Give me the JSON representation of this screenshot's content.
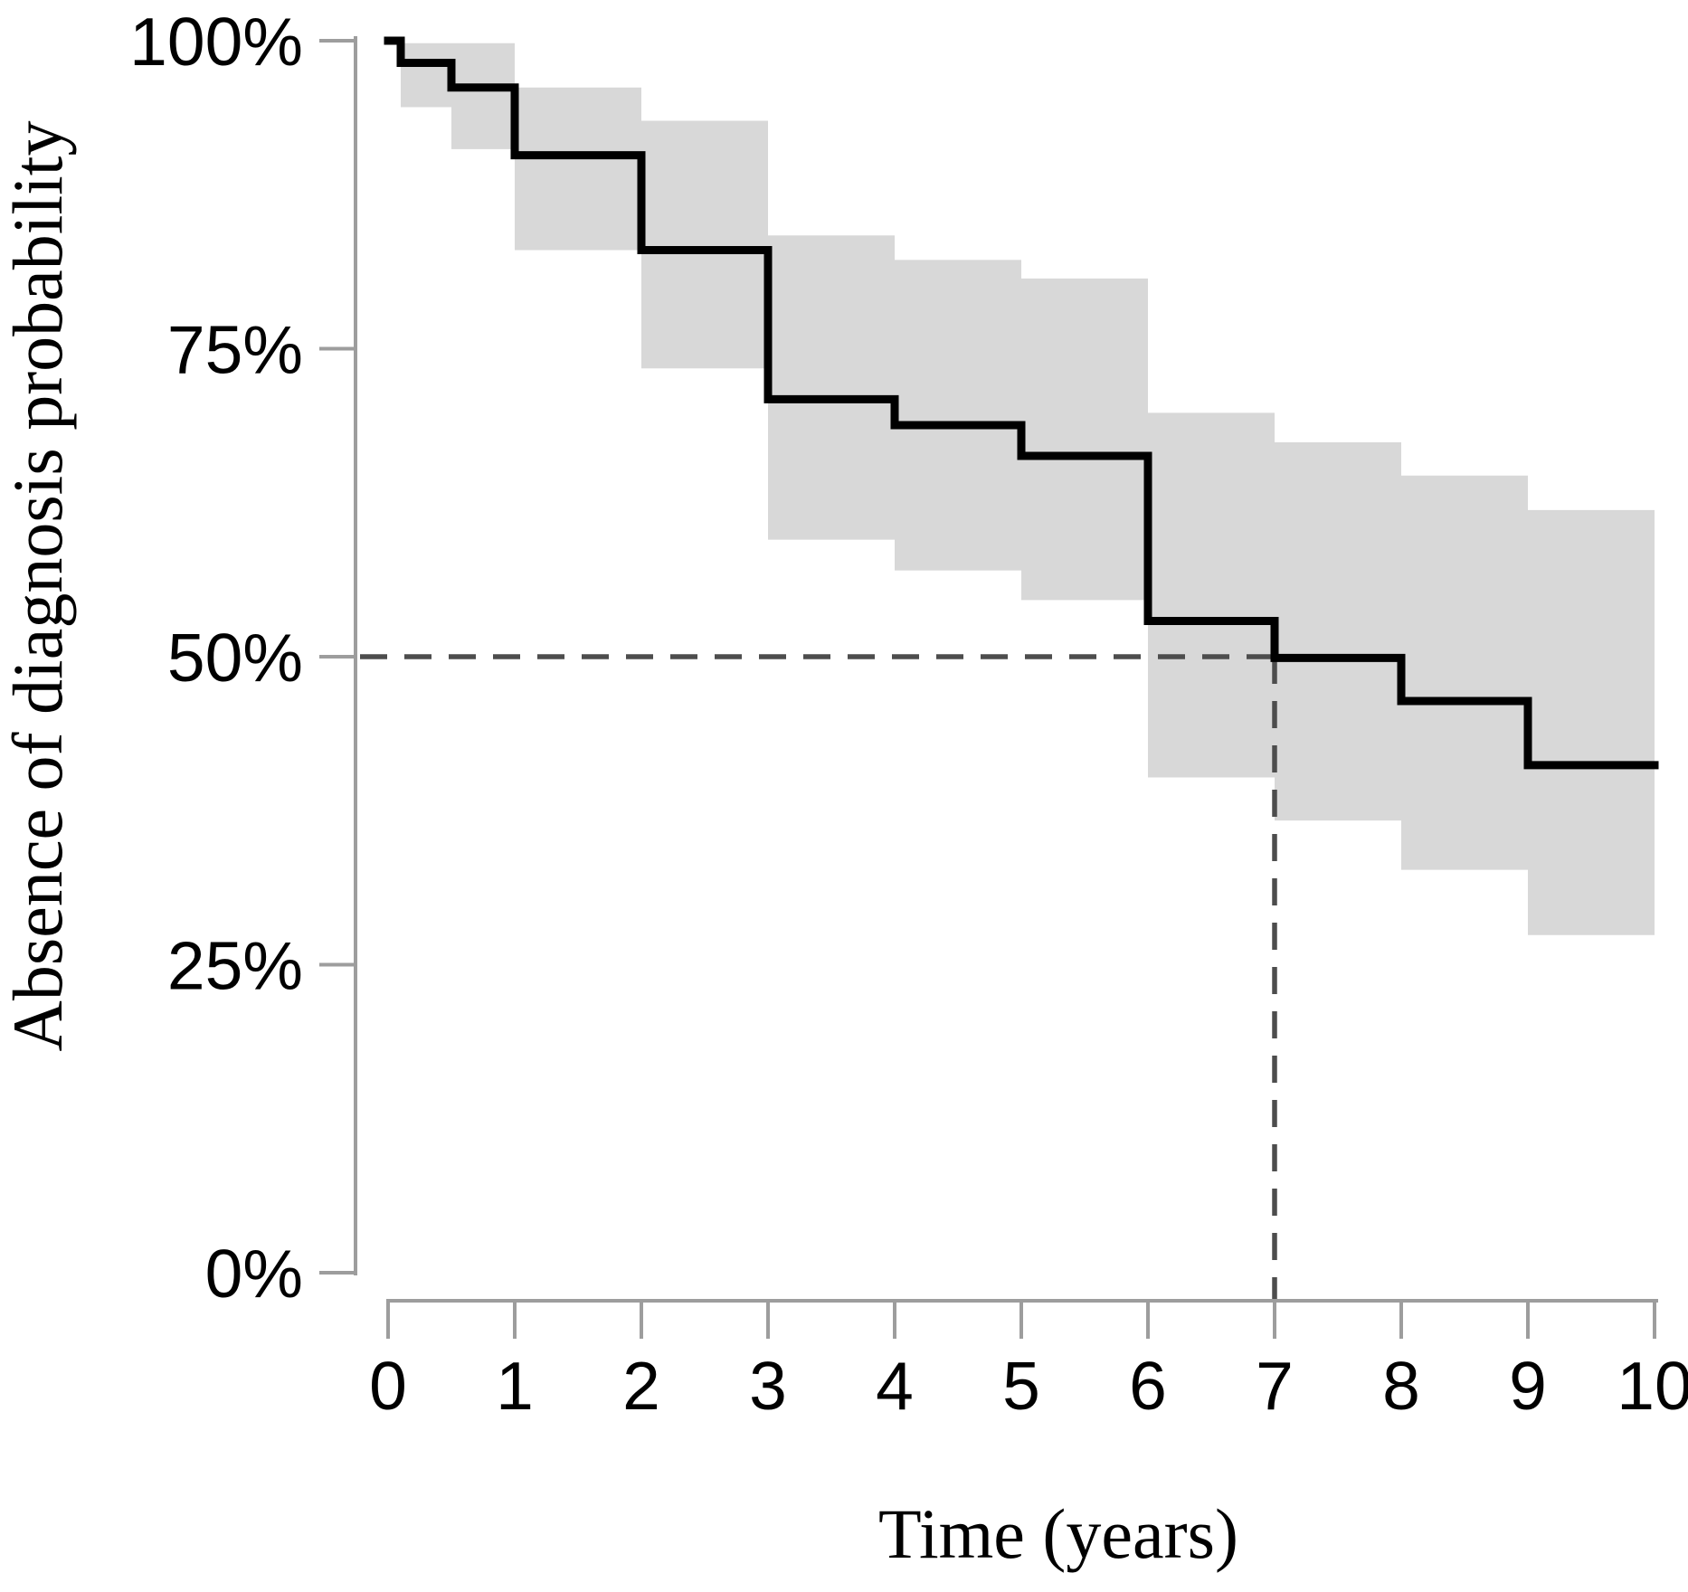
{
  "chart_data": {
    "type": "line",
    "subtype": "kaplan-meier-step-curve-with-confidence-band",
    "title": "",
    "xlabel": "Time (years)",
    "ylabel": "Absence of diagnosis probability",
    "xlim": [
      0,
      10
    ],
    "ylim": [
      0,
      100
    ],
    "grid": false,
    "legend": "none",
    "x_ticks": [
      {
        "label": "0",
        "value": 0
      },
      {
        "label": "1",
        "value": 1
      },
      {
        "label": "2",
        "value": 2
      },
      {
        "label": "3",
        "value": 3
      },
      {
        "label": "4",
        "value": 4
      },
      {
        "label": "5",
        "value": 5
      },
      {
        "label": "6",
        "value": 6
      },
      {
        "label": "7",
        "value": 7
      },
      {
        "label": "8",
        "value": 8
      },
      {
        "label": "9",
        "value": 9
      },
      {
        "label": "10",
        "value": 10
      }
    ],
    "y_ticks": [
      {
        "label": "100%",
        "value": 100
      },
      {
        "label": "75%",
        "value": 75
      },
      {
        "label": "50%",
        "value": 50
      },
      {
        "label": "25%",
        "value": 25
      },
      {
        "label": "0%",
        "value": 0
      }
    ],
    "series": [
      {
        "name": "absence-of-diagnosis-survival",
        "km_steps": [
          {
            "t": 0,
            "s": 100,
            "lo": null,
            "hi": null
          },
          {
            "t": 0.1,
            "s": 98.2,
            "lo": 94.6,
            "hi": 99.8
          },
          {
            "t": 0.5,
            "s": 96.2,
            "lo": 91.2,
            "hi": 99.8
          },
          {
            "t": 1,
            "s": 90.7,
            "lo": 83.0,
            "hi": 96.2
          },
          {
            "t": 2,
            "s": 83.0,
            "lo": 73.4,
            "hi": 93.5
          },
          {
            "t": 3,
            "s": 70.9,
            "lo": 59.5,
            "hi": 84.2
          },
          {
            "t": 4,
            "s": 68.8,
            "lo": 57.0,
            "hi": 82.2
          },
          {
            "t": 5,
            "s": 66.3,
            "lo": 54.6,
            "hi": 80.7
          },
          {
            "t": 6,
            "s": 52.9,
            "lo": 40.2,
            "hi": 69.8
          },
          {
            "t": 7,
            "s": 49.9,
            "lo": 36.7,
            "hi": 67.4
          },
          {
            "t": 8,
            "s": 46.4,
            "lo": 32.7,
            "hi": 64.7
          },
          {
            "t": 9,
            "s": 41.2,
            "lo": 27.4,
            "hi": 61.9
          }
        ],
        "t_end": 10
      }
    ],
    "median_annotation": {
      "time": 7,
      "probability_pct": 50
    },
    "colors": {
      "curve": "#000000",
      "confidence_band": "#d8d8d8",
      "median_dashes": "#4d4d4d",
      "axis_lines": "#9d9d9d",
      "tick_text": "#000000"
    }
  }
}
